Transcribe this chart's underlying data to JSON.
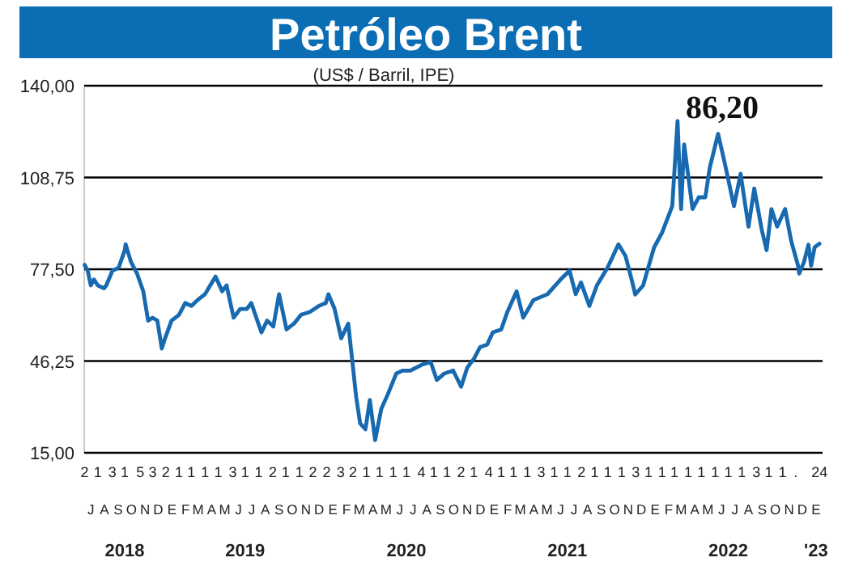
{
  "chart_data": {
    "type": "line",
    "title": "Petróleo Brent",
    "subtitle": "(US$ / Barril, IPE)",
    "annotations": [
      "86,20",
      "2018",
      "2019",
      "2020",
      "2021",
      "2022",
      "'23",
      "J",
      "A",
      "S",
      "O",
      "N",
      "D",
      "E",
      "F",
      "M",
      "A",
      "M",
      "J",
      "J",
      "A",
      "S",
      "O",
      "N",
      "D",
      "E",
      "F",
      "M",
      "A",
      "M",
      "J",
      "J",
      "A",
      "S",
      "O",
      "N",
      "D",
      "E",
      "F",
      "M",
      "A",
      "M",
      "J",
      "J",
      "A",
      "S",
      "O",
      "N",
      "D",
      "E",
      "F",
      "M",
      "A",
      "M",
      "J",
      "J",
      "A",
      "S",
      "O",
      "N",
      "D",
      "E"
    ],
    "ylim": [
      15,
      140
    ],
    "yticks": [
      {
        "value": 15,
        "label": "15,00"
      },
      {
        "value": 46.25,
        "label": "46,25"
      },
      {
        "value": 77.5,
        "label": "77,50"
      },
      {
        "value": 108.75,
        "label": "108,75"
      },
      {
        "value": 140,
        "label": "140,00"
      }
    ],
    "grid": "y",
    "marker": "none",
    "line_style": "solid",
    "xlim": [
      "2018-07-01",
      "2023-01-31"
    ],
    "xticks": [
      {
        "value": "2018-07-02",
        "label": "2"
      },
      {
        "value": "2018-08-01",
        "label": "1"
      },
      {
        "value": "2018-09-03",
        "label": "3"
      },
      {
        "value": "2018-10-01",
        "label": "1"
      },
      {
        "value": "2018-11-05",
        "label": "5"
      },
      {
        "value": "2018-12-03",
        "label": "3"
      },
      {
        "value": "2019-01-02",
        "label": "2"
      },
      {
        "value": "2019-02-01",
        "label": "1"
      },
      {
        "value": "2019-03-01",
        "label": "1"
      },
      {
        "value": "2019-04-01",
        "label": "1"
      },
      {
        "value": "2019-05-01",
        "label": "1"
      },
      {
        "value": "2019-06-03",
        "label": "3"
      },
      {
        "value": "2019-07-01",
        "label": "1"
      },
      {
        "value": "2019-08-01",
        "label": "1"
      },
      {
        "value": "2019-09-02",
        "label": "2"
      },
      {
        "value": "2019-10-01",
        "label": "1"
      },
      {
        "value": "2019-11-01",
        "label": "1"
      },
      {
        "value": "2019-12-02",
        "label": "2"
      },
      {
        "value": "2020-01-02",
        "label": "2"
      },
      {
        "value": "2020-02-03",
        "label": "3"
      },
      {
        "value": "2020-03-02",
        "label": "2"
      },
      {
        "value": "2020-04-01",
        "label": "1"
      },
      {
        "value": "2020-05-01",
        "label": "1"
      },
      {
        "value": "2020-06-01",
        "label": "1"
      },
      {
        "value": "2020-07-01",
        "label": "1"
      },
      {
        "value": "2020-08-04",
        "label": "4"
      },
      {
        "value": "2020-09-01",
        "label": "1"
      },
      {
        "value": "2020-10-01",
        "label": "1"
      },
      {
        "value": "2020-11-02",
        "label": "2"
      },
      {
        "value": "2020-12-01",
        "label": "1"
      },
      {
        "value": "2021-01-04",
        "label": "4"
      },
      {
        "value": "2021-02-01",
        "label": "1"
      },
      {
        "value": "2021-03-01",
        "label": "1"
      },
      {
        "value": "2021-04-01",
        "label": "1"
      },
      {
        "value": "2021-05-03",
        "label": "3"
      },
      {
        "value": "2021-06-01",
        "label": "1"
      },
      {
        "value": "2021-07-01",
        "label": "1"
      },
      {
        "value": "2021-08-02",
        "label": "2"
      },
      {
        "value": "2021-09-01",
        "label": "1"
      },
      {
        "value": "2021-10-01",
        "label": "1"
      },
      {
        "value": "2021-11-01",
        "label": "1"
      },
      {
        "value": "2021-12-03",
        "label": "3"
      },
      {
        "value": "2022-01-01",
        "label": "1"
      },
      {
        "value": "2022-02-01",
        "label": "1"
      },
      {
        "value": "2022-03-01",
        "label": "1"
      },
      {
        "value": "2022-04-01",
        "label": "1"
      },
      {
        "value": "2022-05-01",
        "label": "1"
      },
      {
        "value": "2022-06-01",
        "label": "1"
      },
      {
        "value": "2022-07-01",
        "label": "1"
      },
      {
        "value": "2022-08-01",
        "label": "1"
      },
      {
        "value": "2022-09-03",
        "label": "3"
      },
      {
        "value": "2022-10-01",
        "label": "1"
      },
      {
        "value": "2022-11-01",
        "label": "1"
      },
      {
        "value": "2022-12-01",
        "label": "."
      },
      {
        "value": "2023-01-24",
        "label": "24"
      }
    ],
    "series": [
      {
        "color": "#1769b0",
        "x": [
          "2018-07-02",
          "2018-07-09",
          "2018-07-16",
          "2018-07-23",
          "2018-08-01",
          "2018-08-15",
          "2018-08-20",
          "2018-09-03",
          "2018-09-17",
          "2018-10-01",
          "2018-10-03",
          "2018-10-15",
          "2018-10-29",
          "2018-11-12",
          "2018-11-23",
          "2018-12-03",
          "2018-12-14",
          "2018-12-24",
          "2018-12-31",
          "2019-01-15",
          "2019-02-01",
          "2019-02-15",
          "2019-03-01",
          "2019-03-15",
          "2019-04-01",
          "2019-04-25",
          "2019-05-10",
          "2019-05-20",
          "2019-06-05",
          "2019-06-20",
          "2019-07-05",
          "2019-07-15",
          "2019-08-07",
          "2019-08-20",
          "2019-09-03",
          "2019-09-16",
          "2019-10-03",
          "2019-10-20",
          "2019-11-05",
          "2019-11-25",
          "2019-12-15",
          "2019-12-31",
          "2020-01-06",
          "2020-01-20",
          "2020-02-04",
          "2020-02-20",
          "2020-03-09",
          "2020-03-18",
          "2020-03-30",
          "2020-04-09",
          "2020-04-21",
          "2020-05-05",
          "2020-05-20",
          "2020-06-08",
          "2020-06-22",
          "2020-07-10",
          "2020-08-05",
          "2020-08-25",
          "2020-09-08",
          "2020-09-25",
          "2020-10-15",
          "2020-11-02",
          "2020-11-16",
          "2020-12-01",
          "2020-12-15",
          "2020-12-31",
          "2021-01-13",
          "2021-02-01",
          "2021-02-15",
          "2021-03-08",
          "2021-03-23",
          "2021-04-15",
          "2021-05-17",
          "2021-06-15",
          "2021-07-06",
          "2021-07-20",
          "2021-08-01",
          "2021-08-20",
          "2021-09-06",
          "2021-09-30",
          "2021-10-25",
          "2021-11-10",
          "2021-11-26",
          "2021-12-02",
          "2021-12-20",
          "2021-12-31",
          "2022-01-14",
          "2022-02-01",
          "2022-02-24",
          "2022-03-08",
          "2022-03-16",
          "2022-03-23",
          "2022-04-11",
          "2022-04-25",
          "2022-05-10",
          "2022-05-20",
          "2022-06-08",
          "2022-06-24",
          "2022-07-14",
          "2022-07-29",
          "2022-08-16",
          "2022-08-29",
          "2022-09-15",
          "2022-09-26",
          "2022-10-07",
          "2022-10-20",
          "2022-11-07",
          "2022-11-21",
          "2022-12-06",
          "2022-12-09",
          "2022-12-20",
          "2022-12-30",
          "2023-01-05",
          "2023-01-13",
          "2023-01-24"
        ],
        "values": [
          79,
          77,
          72,
          74,
          72,
          71,
          72,
          77,
          78,
          84,
          86,
          80,
          76,
          70,
          60,
          61,
          60,
          50.5,
          53.8,
          60,
          62,
          66,
          65,
          67,
          69,
          75,
          70,
          72,
          61,
          64,
          64,
          66,
          56,
          60,
          58,
          69,
          57,
          59,
          62,
          63,
          65,
          66,
          69,
          64,
          54,
          59,
          34,
          25,
          23,
          33,
          19.3,
          30,
          35,
          42,
          43,
          43,
          45,
          45.9,
          39.8,
          42,
          43,
          37.5,
          44,
          47,
          51,
          51.8,
          56,
          57,
          63,
          70,
          61,
          67,
          69,
          73.9,
          77,
          69,
          73,
          65,
          72,
          78,
          86,
          82,
          72.7,
          68.9,
          72,
          77.8,
          85,
          90,
          99,
          128,
          98,
          120,
          98,
          102,
          102,
          112,
          123.6,
          113,
          99,
          110,
          92,
          105,
          91,
          84,
          98,
          92,
          98,
          87,
          79,
          76,
          80,
          85.9,
          78.7,
          85,
          86.2
        ]
      }
    ]
  }
}
